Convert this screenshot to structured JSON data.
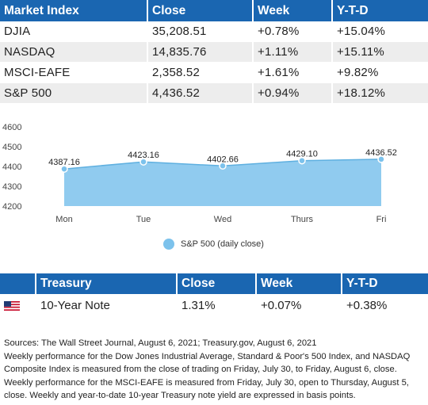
{
  "market_table": {
    "headers": [
      "Market Index",
      "Close",
      "Week",
      "Y-T-D"
    ],
    "rows": [
      {
        "name": "DJIA",
        "close": "35,208.51",
        "week": "+0.78%",
        "ytd": "+15.04%"
      },
      {
        "name": "NASDAQ",
        "close": "14,835.76",
        "week": "+1.11%",
        "ytd": "+15.11%"
      },
      {
        "name": "MSCI-EAFE",
        "close": "2,358.52",
        "week": "+1.61%",
        "ytd": "+9.82%"
      },
      {
        "name": "S&P 500",
        "close": "4,436.52",
        "week": "+0.94%",
        "ytd": "+18.12%"
      }
    ]
  },
  "chart_data": {
    "type": "area",
    "categories": [
      "Mon",
      "Tue",
      "Wed",
      "Thurs",
      "Fri"
    ],
    "series": [
      {
        "name": "S&P 500 (daily close)",
        "values": [
          4387.16,
          4423.16,
          4402.66,
          4429.1,
          4436.52
        ]
      }
    ],
    "data_labels": [
      "4387.16",
      "4423.16",
      "4402.66",
      "4429.10",
      "4436.52"
    ],
    "yticks": [
      4200,
      4300,
      4400,
      4500,
      4600
    ],
    "ylim": [
      4200,
      4600
    ],
    "grid": false,
    "legend": "bottom-center",
    "color": "#7cc2ec"
  },
  "treasury_table": {
    "headers": [
      "",
      "Treasury",
      "Close",
      "Week",
      "Y-T-D"
    ],
    "row": {
      "name": "10-Year Note",
      "close": "1.31%",
      "week": "+0.07%",
      "ytd": "+0.38%",
      "icon": "us-flag-icon"
    }
  },
  "notes": {
    "sources": "Sources: The Wall Street Journal, August 6, 2021; Treasury.gov, August 6, 2021",
    "body": "Weekly performance for the Dow Jones Industrial Average, Standard & Poor's 500 Index, and NASDAQ Composite Index is measured from the close of trading on Friday, July 30, to Friday, August 6, close. Weekly performance for the MSCI-EAFE is measured from Friday, July 30, open to Thursday, August 5, close. Weekly and year-to-date 10-year Treasury note yield are expressed in basis points."
  }
}
